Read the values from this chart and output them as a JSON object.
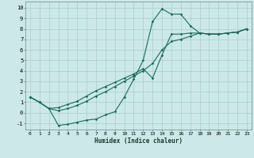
{
  "xlabel": "Humidex (Indice chaleur)",
  "bg_color": "#cce8e8",
  "grid_color": "#aacece",
  "line_color": "#1a6b5a",
  "xlim": [
    -0.5,
    23.5
  ],
  "ylim": [
    -1.6,
    10.6
  ],
  "xticks": [
    0,
    1,
    2,
    3,
    4,
    5,
    6,
    7,
    8,
    9,
    10,
    11,
    12,
    13,
    14,
    15,
    16,
    17,
    18,
    19,
    20,
    21,
    22,
    23
  ],
  "yticks": [
    -1,
    0,
    1,
    2,
    3,
    4,
    5,
    6,
    7,
    8,
    9,
    10
  ],
  "series": [
    [
      1.5,
      1.0,
      0.4,
      -1.2,
      -1.1,
      -0.9,
      -0.7,
      -0.6,
      -0.2,
      0.1,
      1.5,
      3.2,
      5.0,
      8.7,
      9.9,
      9.4,
      9.4,
      8.3,
      7.6,
      7.5,
      7.5,
      7.6,
      7.7,
      8.0
    ],
    [
      1.5,
      1.0,
      0.4,
      0.5,
      0.8,
      1.1,
      1.6,
      2.1,
      2.5,
      2.9,
      3.3,
      3.7,
      4.2,
      3.3,
      5.5,
      7.5,
      7.5,
      7.6,
      7.6,
      7.5,
      7.5,
      7.6,
      7.7,
      8.0
    ],
    [
      1.5,
      1.0,
      0.4,
      0.2,
      0.4,
      0.7,
      1.1,
      1.6,
      2.0,
      2.5,
      3.0,
      3.5,
      4.0,
      4.7,
      6.0,
      6.8,
      7.0,
      7.3,
      7.6,
      7.5,
      7.5,
      7.6,
      7.7,
      8.0
    ]
  ]
}
